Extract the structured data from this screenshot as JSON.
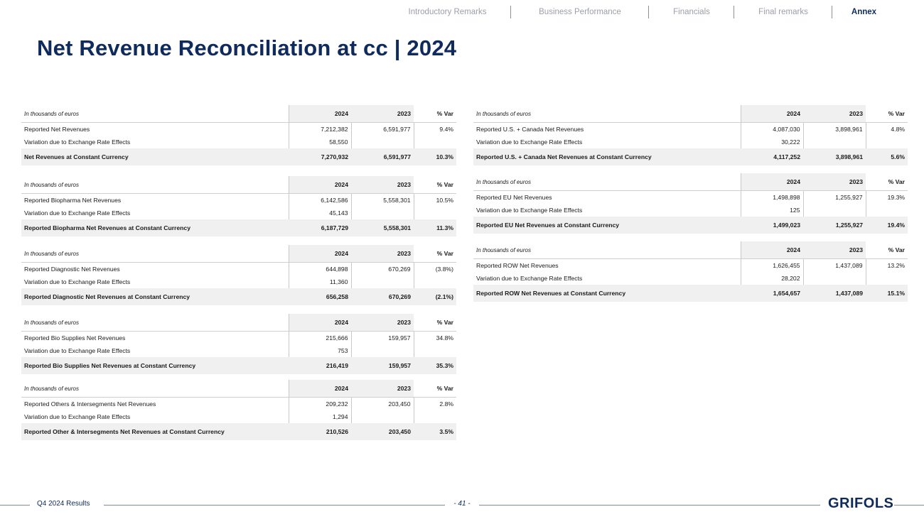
{
  "nav": {
    "items": [
      {
        "label": "Introductory Remarks"
      },
      {
        "label": "Business Performance"
      },
      {
        "label": "Financials"
      },
      {
        "label": "Final remarks"
      },
      {
        "label": "Annex"
      }
    ]
  },
  "page_title": "Net Revenue Reconciliation at cc | 2024",
  "tables": [
    {
      "unit_label": "In thousands of euros",
      "col_2024": "2024",
      "col_2023": "2023",
      "col_var": "% Var",
      "reported": {
        "label": "Reported Net Revenues",
        "v2024": "7,212,382",
        "v2023": "6,591,977",
        "var": "9.4%"
      },
      "fx": {
        "label": "Variation due to Exchange Rate Effects",
        "v2024": "58,550"
      },
      "total": {
        "label": "Net Revenues at Constant Currency",
        "v2024": "7,270,932",
        "v2023": "6,591,977",
        "var": "10.3%"
      }
    },
    {
      "unit_label": "In thousands of euros",
      "col_2024": "2024",
      "col_2023": "2023",
      "col_var": "% Var",
      "reported": {
        "label": "Reported Biopharma Net Revenues",
        "v2024": "6,142,586",
        "v2023": "5,558,301",
        "var": "10.5%"
      },
      "fx": {
        "label": "Variation due to Exchange Rate Effects",
        "v2024": "45,143"
      },
      "total": {
        "label": "Reported Biopharma Net Revenues at Constant Currency",
        "v2024": "6,187,729",
        "v2023": "5,558,301",
        "var": "11.3%"
      }
    },
    {
      "unit_label": "In thousands of euros",
      "col_2024": "2024",
      "col_2023": "2023",
      "col_var": "% Var",
      "reported": {
        "label": "Reported Diagnostic Net Revenues",
        "v2024": "644,898",
        "v2023": "670,269",
        "var": "(3.8%)"
      },
      "fx": {
        "label": "Variation due to Exchange Rate Effects",
        "v2024": "11,360"
      },
      "total": {
        "label": "Reported Diagnostic Net Revenues at Constant Currency",
        "v2024": "656,258",
        "v2023": "670,269",
        "var": "(2.1%)"
      }
    },
    {
      "unit_label": "In thousands of euros",
      "col_2024": "2024",
      "col_2023": "2023",
      "col_var": "% Var",
      "reported": {
        "label": "Reported Bio Supplies Net Revenues",
        "v2024": "215,666",
        "v2023": "159,957",
        "var": "34.8%"
      },
      "fx": {
        "label": "Variation due to Exchange Rate Effects",
        "v2024": "753"
      },
      "total": {
        "label": "Reported Bio Supplies Net Revenues at Constant Currency",
        "v2024": "216,419",
        "v2023": "159,957",
        "var": "35.3%"
      }
    },
    {
      "unit_label": "In thousands of euros",
      "col_2024": "2024",
      "col_2023": "2023",
      "col_var": "% Var",
      "reported": {
        "label": "Reported Others & Intersegments Net Revenues",
        "v2024": "209,232",
        "v2023": "203,450",
        "var": "2.8%"
      },
      "fx": {
        "label": "Variation due to Exchange Rate Effects",
        "v2024": "1,294"
      },
      "total": {
        "label": "Reported Other & Intersegments Net Revenues at Constant  Currency",
        "v2024": "210,526",
        "v2023": "203,450",
        "var": "3.5%"
      }
    },
    {
      "unit_label": "In thousands of euros",
      "col_2024": "2024",
      "col_2023": "2023",
      "col_var": "% Var",
      "reported": {
        "label": "Reported U.S. + Canada Net Revenues",
        "v2024": "4,087,030",
        "v2023": "3,898,961",
        "var": "4.8%"
      },
      "fx": {
        "label": "Variation due to Exchange Rate Effects",
        "v2024": "30,222"
      },
      "total": {
        "label": "Reported U.S. + Canada Net Revenues at Constant Currency",
        "v2024": "4,117,252",
        "v2023": "3,898,961",
        "var": "5.6%"
      }
    },
    {
      "unit_label": "In thousands of euros",
      "col_2024": "2024",
      "col_2023": "2023",
      "col_var": "% Var",
      "reported": {
        "label": "Reported EU Net Revenues",
        "v2024": "1,498,898",
        "v2023": "1,255,927",
        "var": "19.3%"
      },
      "fx": {
        "label": "Variation due to Exchange Rate Effects",
        "v2024": "125"
      },
      "total": {
        "label": "Reported EU Net Revenues at Constant Currency",
        "v2024": "1,499,023",
        "v2023": "1,255,927",
        "var": "19.4%"
      }
    },
    {
      "unit_label": "In thousands of euros",
      "col_2024": "2024",
      "col_2023": "2023",
      "col_var": "% Var",
      "reported": {
        "label": "Reported ROW Net Revenues",
        "v2024": "1,626,455",
        "v2023": "1,437,089",
        "var": "13.2%"
      },
      "fx": {
        "label": "Variation due to Exchange Rate Effects",
        "v2024": "28,202"
      },
      "total": {
        "label": "Reported ROW Net Revenues at Constant Currency",
        "v2024": "1,654,657",
        "v2023": "1,437,089",
        "var": "15.1%"
      }
    }
  ],
  "footer": {
    "left": "Q4 2024 Results",
    "page": "- 41 -",
    "logo": "GRIFOLS"
  },
  "colors": {
    "brand": "#0f2a5c",
    "shade": "#f0f0f0",
    "nav_inactive": "#9a9fa8"
  }
}
